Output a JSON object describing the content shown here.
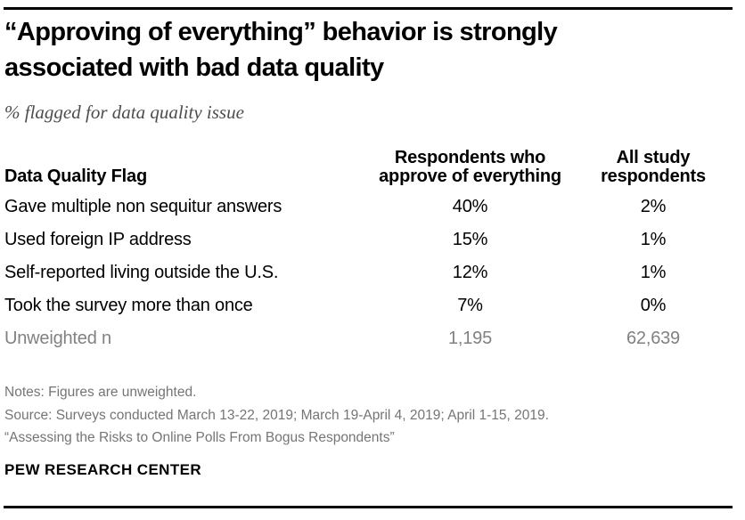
{
  "header": {
    "title_line1": "“Approving of everything” behavior is strongly",
    "title_line2": "associated with bad data quality",
    "subtitle": "% flagged for data quality issue"
  },
  "table": {
    "columns": {
      "flag": "Data Quality Flag",
      "approve": "Respondents who approve of everything",
      "all": "All study respondents"
    },
    "rows": [
      {
        "flag": "Gave multiple non sequitur answers",
        "approve": "40%",
        "all": "2%"
      },
      {
        "flag": "Used foreign IP address",
        "approve": "15%",
        "all": "1%"
      },
      {
        "flag": "Self-reported living outside the U.S.",
        "approve": "12%",
        "all": "1%"
      },
      {
        "flag": "Took the survey more than once",
        "approve": "7%",
        "all": "0%"
      },
      {
        "flag": "Unweighted n",
        "approve": "1,195",
        "all": "62,639"
      }
    ]
  },
  "notes": {
    "line1": "Notes: Figures are unweighted.",
    "line2": "Source: Surveys conducted March 13-22, 2019; March 19-April 4, 2019; April 1-15, 2019.",
    "line3": "“Assessing the Risks to Online Polls From Bogus Respondents”"
  },
  "footer": {
    "brand": "PEW RESEARCH CENTER"
  },
  "colors": {
    "text": "#000000",
    "muted_gray": "#818181",
    "notes_gray": "#757575",
    "subtitle_gray": "#4d4d4d",
    "rule": "#000000"
  },
  "chart_data": {
    "type": "table",
    "title": "“Approving of everything” behavior is strongly associated with bad data quality",
    "subtitle": "% flagged for data quality issue",
    "columns": [
      "Data Quality Flag",
      "Respondents who approve of everything",
      "All study respondents"
    ],
    "rows": [
      [
        "Gave multiple non sequitur answers",
        "40%",
        "2%"
      ],
      [
        "Used foreign IP address",
        "15%",
        "1%"
      ],
      [
        "Self-reported living outside the U.S.",
        "12%",
        "1%"
      ],
      [
        "Took the survey more than once",
        "7%",
        "0%"
      ],
      [
        "Unweighted n",
        "1,195",
        "62,639"
      ]
    ],
    "series": [
      {
        "name": "Respondents who approve of everything",
        "values": [
          40,
          15,
          12,
          7
        ],
        "unweighted_n": 1195
      },
      {
        "name": "All study respondents",
        "values": [
          2,
          1,
          1,
          0
        ],
        "unweighted_n": 62639
      }
    ],
    "categories": [
      "Gave multiple non sequitur answers",
      "Used foreign IP address",
      "Self-reported living outside the U.S.",
      "Took the survey more than once"
    ],
    "value_unit": "%",
    "source_note": "Source: Surveys conducted March 13-22, 2019; March 19-April 4, 2019; April 1-15, 2019."
  }
}
